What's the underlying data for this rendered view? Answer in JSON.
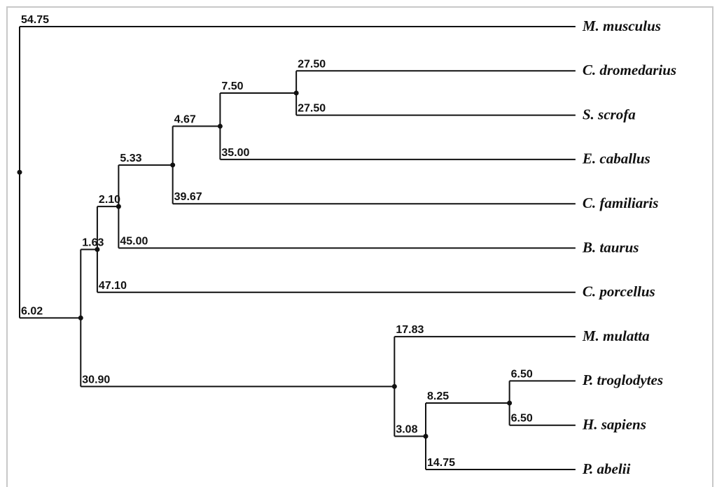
{
  "tree": {
    "children": [
      {
        "name": "M. musculus",
        "length": "54.75"
      },
      {
        "length": "6.02",
        "children": [
          {
            "length": "1.63",
            "children": [
              {
                "length": "2.10",
                "children": [
                  {
                    "length": "5.33",
                    "children": [
                      {
                        "length": "4.67",
                        "children": [
                          {
                            "length": "7.50",
                            "children": [
                              {
                                "name": "C. dromedarius",
                                "length": "27.50"
                              },
                              {
                                "name": "S. scrofa",
                                "length": "27.50"
                              }
                            ]
                          },
                          {
                            "name": "E. caballus",
                            "length": "35.00"
                          }
                        ]
                      },
                      {
                        "name": "C. familiaris",
                        "length": "39.67"
                      }
                    ]
                  },
                  {
                    "name": "B. taurus",
                    "length": "45.00"
                  }
                ]
              },
              {
                "name": "C. porcellus",
                "length": "47.10"
              }
            ]
          },
          {
            "length": "30.90",
            "children": [
              {
                "name": "M. mulatta",
                "length": "17.83"
              },
              {
                "length": "3.08",
                "children": [
                  {
                    "length": "8.25",
                    "children": [
                      {
                        "name": "P. troglodytes",
                        "length": "6.50"
                      },
                      {
                        "name": "H. sapiens",
                        "length": "6.50"
                      }
                    ]
                  },
                  {
                    "name": "P. abelii",
                    "length": "14.75"
                  }
                ]
              }
            ]
          }
        ]
      }
    ]
  }
}
